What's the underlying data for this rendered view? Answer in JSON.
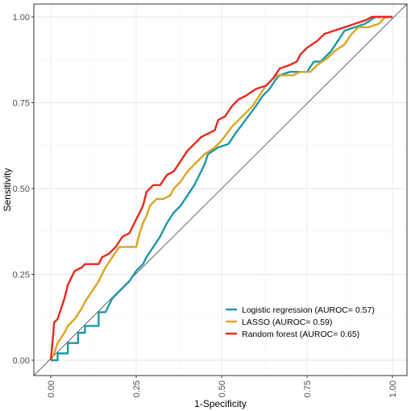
{
  "chart_data": {
    "type": "line",
    "xlabel": "1-Specificity",
    "ylabel": "Sensitivity",
    "xlim": [
      0,
      1
    ],
    "ylim": [
      0,
      1
    ],
    "x_ticks": [
      "0.00",
      "0.25",
      "0.50",
      "0.75",
      "1.00"
    ],
    "y_ticks": [
      "0.00",
      "0.25",
      "0.50",
      "0.75",
      "1.00"
    ],
    "x_tick_values": [
      0,
      0.25,
      0.5,
      0.75,
      1
    ],
    "y_tick_values": [
      0,
      0.25,
      0.5,
      0.75,
      1
    ],
    "grid": true,
    "legend_position": "bottom-right",
    "reference_line": {
      "from": [
        0,
        0
      ],
      "to": [
        1,
        1
      ],
      "color": "#666666"
    },
    "series": [
      {
        "name": "Logistic regression (AUROC= 0.57)",
        "color": "#1d96a8",
        "points": [
          [
            0,
            0
          ],
          [
            0.02,
            0
          ],
          [
            0.02,
            0.02
          ],
          [
            0.05,
            0.02
          ],
          [
            0.05,
            0.05
          ],
          [
            0.08,
            0.05
          ],
          [
            0.08,
            0.08
          ],
          [
            0.1,
            0.08
          ],
          [
            0.1,
            0.1
          ],
          [
            0.14,
            0.1
          ],
          [
            0.14,
            0.14
          ],
          [
            0.16,
            0.14
          ],
          [
            0.18,
            0.18
          ],
          [
            0.2,
            0.2
          ],
          [
            0.23,
            0.23
          ],
          [
            0.25,
            0.26
          ],
          [
            0.27,
            0.28
          ],
          [
            0.28,
            0.3
          ],
          [
            0.3,
            0.33
          ],
          [
            0.32,
            0.36
          ],
          [
            0.34,
            0.4
          ],
          [
            0.36,
            0.43
          ],
          [
            0.38,
            0.45
          ],
          [
            0.4,
            0.48
          ],
          [
            0.42,
            0.51
          ],
          [
            0.43,
            0.53
          ],
          [
            0.44,
            0.55
          ],
          [
            0.45,
            0.57
          ],
          [
            0.46,
            0.6
          ],
          [
            0.49,
            0.62
          ],
          [
            0.52,
            0.63
          ],
          [
            0.54,
            0.66
          ],
          [
            0.57,
            0.7
          ],
          [
            0.6,
            0.74
          ],
          [
            0.62,
            0.77
          ],
          [
            0.64,
            0.79
          ],
          [
            0.66,
            0.82
          ],
          [
            0.67,
            0.83
          ],
          [
            0.7,
            0.84
          ],
          [
            0.75,
            0.84
          ],
          [
            0.77,
            0.87
          ],
          [
            0.79,
            0.87
          ],
          [
            0.82,
            0.9
          ],
          [
            0.84,
            0.93
          ],
          [
            0.86,
            0.96
          ],
          [
            0.89,
            0.97
          ],
          [
            0.92,
            0.98
          ],
          [
            0.95,
            1
          ],
          [
            1,
            1
          ]
        ]
      },
      {
        "name": "LASSO (AUROC= 0.59)",
        "color": "#daa520",
        "points": [
          [
            0,
            0
          ],
          [
            0.01,
            0.02
          ],
          [
            0.02,
            0.05
          ],
          [
            0.04,
            0.08
          ],
          [
            0.05,
            0.1
          ],
          [
            0.07,
            0.12
          ],
          [
            0.09,
            0.15
          ],
          [
            0.1,
            0.17
          ],
          [
            0.12,
            0.2
          ],
          [
            0.14,
            0.23
          ],
          [
            0.16,
            0.27
          ],
          [
            0.18,
            0.3
          ],
          [
            0.2,
            0.33
          ],
          [
            0.25,
            0.33
          ],
          [
            0.26,
            0.37
          ],
          [
            0.27,
            0.4
          ],
          [
            0.28,
            0.42
          ],
          [
            0.29,
            0.45
          ],
          [
            0.31,
            0.47
          ],
          [
            0.33,
            0.47
          ],
          [
            0.35,
            0.48
          ],
          [
            0.36,
            0.5
          ],
          [
            0.38,
            0.52
          ],
          [
            0.4,
            0.55
          ],
          [
            0.43,
            0.58
          ],
          [
            0.45,
            0.6
          ],
          [
            0.48,
            0.62
          ],
          [
            0.5,
            0.64
          ],
          [
            0.53,
            0.68
          ],
          [
            0.55,
            0.7
          ],
          [
            0.57,
            0.72
          ],
          [
            0.59,
            0.74
          ],
          [
            0.61,
            0.77
          ],
          [
            0.63,
            0.8
          ],
          [
            0.66,
            0.83
          ],
          [
            0.71,
            0.83
          ],
          [
            0.73,
            0.84
          ],
          [
            0.76,
            0.84
          ],
          [
            0.78,
            0.86
          ],
          [
            0.81,
            0.88
          ],
          [
            0.83,
            0.9
          ],
          [
            0.86,
            0.92
          ],
          [
            0.88,
            0.95
          ],
          [
            0.9,
            0.97
          ],
          [
            0.93,
            0.97
          ],
          [
            0.96,
            0.98
          ],
          [
            0.98,
            1
          ],
          [
            1,
            1
          ]
        ]
      },
      {
        "name": "Random forest (AUROC= 0.65)",
        "color": "#e8281e",
        "points": [
          [
            0,
            0
          ],
          [
            0.005,
            0.05
          ],
          [
            0.01,
            0.11
          ],
          [
            0.02,
            0.12
          ],
          [
            0.03,
            0.15
          ],
          [
            0.04,
            0.18
          ],
          [
            0.05,
            0.22
          ],
          [
            0.07,
            0.26
          ],
          [
            0.09,
            0.27
          ],
          [
            0.1,
            0.28
          ],
          [
            0.14,
            0.28
          ],
          [
            0.15,
            0.3
          ],
          [
            0.17,
            0.31
          ],
          [
            0.19,
            0.33
          ],
          [
            0.21,
            0.36
          ],
          [
            0.23,
            0.37
          ],
          [
            0.25,
            0.41
          ],
          [
            0.27,
            0.45
          ],
          [
            0.28,
            0.49
          ],
          [
            0.3,
            0.51
          ],
          [
            0.32,
            0.51
          ],
          [
            0.34,
            0.54
          ],
          [
            0.36,
            0.55
          ],
          [
            0.38,
            0.58
          ],
          [
            0.4,
            0.61
          ],
          [
            0.42,
            0.63
          ],
          [
            0.44,
            0.65
          ],
          [
            0.46,
            0.66
          ],
          [
            0.48,
            0.67
          ],
          [
            0.49,
            0.7
          ],
          [
            0.51,
            0.71
          ],
          [
            0.53,
            0.74
          ],
          [
            0.55,
            0.76
          ],
          [
            0.57,
            0.77
          ],
          [
            0.6,
            0.79
          ],
          [
            0.63,
            0.8
          ],
          [
            0.65,
            0.82
          ],
          [
            0.67,
            0.85
          ],
          [
            0.7,
            0.86
          ],
          [
            0.72,
            0.87
          ],
          [
            0.73,
            0.89
          ],
          [
            0.75,
            0.91
          ],
          [
            0.78,
            0.93
          ],
          [
            0.8,
            0.95
          ],
          [
            0.83,
            0.96
          ],
          [
            0.86,
            0.97
          ],
          [
            0.89,
            0.98
          ],
          [
            0.92,
            0.99
          ],
          [
            0.94,
            1
          ],
          [
            1,
            1
          ]
        ]
      }
    ]
  }
}
